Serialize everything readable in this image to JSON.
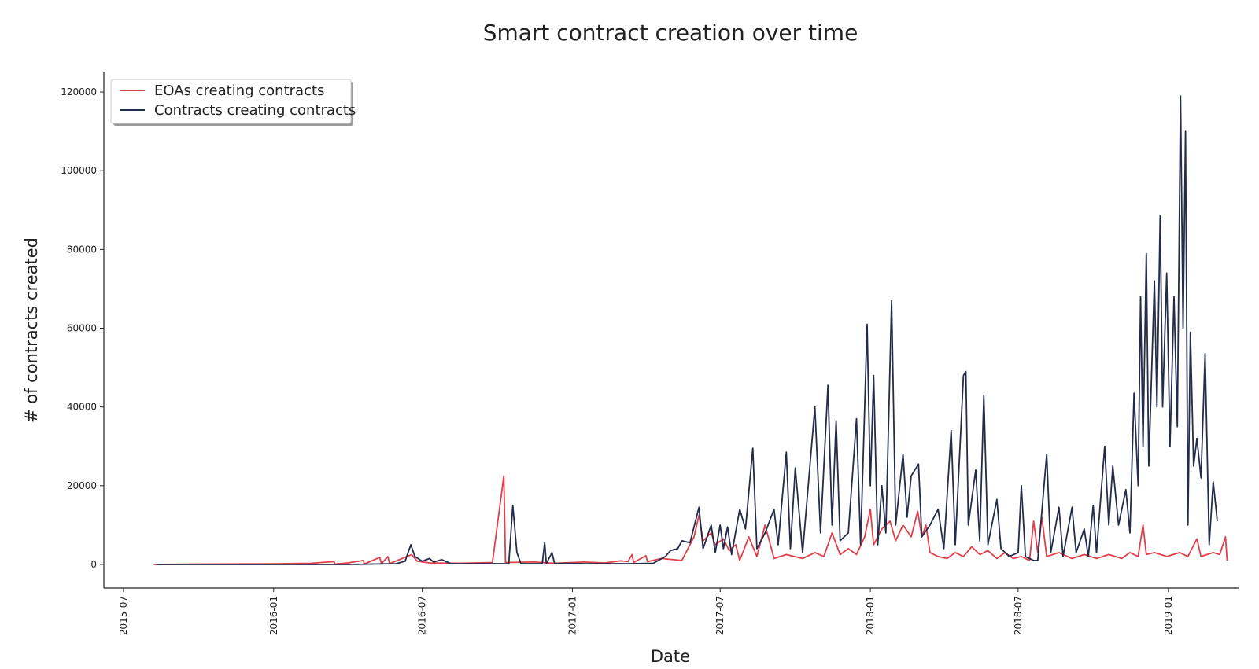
{
  "chart_data": {
    "type": "line",
    "title": "Smart contract creation over time",
    "xlabel": "Date",
    "ylabel": "# of contracts created",
    "x_ticks": [
      "2015-07",
      "2016-01",
      "2016-07",
      "2017-01",
      "2017-07",
      "2018-01",
      "2018-07",
      "2019-01"
    ],
    "y_ticks": [
      0,
      20000,
      40000,
      60000,
      80000,
      100000,
      120000
    ],
    "xlim": [
      "2015-06-07",
      "2019-03-28"
    ],
    "ylim": [
      -6000,
      125000
    ],
    "grid": false,
    "legend": "top-left",
    "colors": {
      "eoa": "#e0404a",
      "contracts": "#232c4a"
    },
    "series": [
      {
        "name": "EOAs creating contracts",
        "color": "#e0404a",
        "points": [
          [
            "2015-08-07",
            0
          ],
          [
            "2015-10-01",
            100
          ],
          [
            "2016-01-01",
            150
          ],
          [
            "2016-02-15",
            300
          ],
          [
            "2016-03-15",
            700
          ],
          [
            "2016-03-16",
            100
          ],
          [
            "2016-04-01",
            400
          ],
          [
            "2016-04-20",
            1000
          ],
          [
            "2016-04-21",
            100
          ],
          [
            "2016-05-10",
            1800
          ],
          [
            "2016-05-12",
            200
          ],
          [
            "2016-05-20",
            2000
          ],
          [
            "2016-05-22",
            200
          ],
          [
            "2016-06-18",
            2500
          ],
          [
            "2016-06-25",
            800
          ],
          [
            "2016-07-10",
            400
          ],
          [
            "2016-08-15",
            300
          ],
          [
            "2016-09-25",
            500
          ],
          [
            "2016-10-09",
            22500
          ],
          [
            "2016-10-11",
            500
          ],
          [
            "2016-11-15",
            600
          ],
          [
            "2016-12-10",
            300
          ],
          [
            "2017-01-15",
            600
          ],
          [
            "2017-02-10",
            400
          ],
          [
            "2017-03-01",
            900
          ],
          [
            "2017-03-10",
            700
          ],
          [
            "2017-03-15",
            2500
          ],
          [
            "2017-03-17",
            500
          ],
          [
            "2017-04-01",
            2200
          ],
          [
            "2017-04-03",
            700
          ],
          [
            "2017-04-20",
            1500
          ],
          [
            "2017-05-15",
            1000
          ],
          [
            "2017-05-30",
            7000
          ],
          [
            "2017-06-05",
            12500
          ],
          [
            "2017-06-10",
            6000
          ],
          [
            "2017-06-20",
            8000
          ],
          [
            "2017-06-25",
            5000
          ],
          [
            "2017-07-05",
            6500
          ],
          [
            "2017-07-12",
            3500
          ],
          [
            "2017-07-20",
            5000
          ],
          [
            "2017-07-25",
            1000
          ],
          [
            "2017-08-05",
            7000
          ],
          [
            "2017-08-15",
            2000
          ],
          [
            "2017-08-25",
            10000
          ],
          [
            "2017-09-05",
            1500
          ],
          [
            "2017-09-20",
            2500
          ],
          [
            "2017-10-10",
            1500
          ],
          [
            "2017-10-25",
            3000
          ],
          [
            "2017-11-05",
            2000
          ],
          [
            "2017-11-15",
            8000
          ],
          [
            "2017-11-25",
            2500
          ],
          [
            "2017-12-05",
            4000
          ],
          [
            "2017-12-15",
            2500
          ],
          [
            "2017-12-25",
            7000
          ],
          [
            "2018-01-01",
            14000
          ],
          [
            "2018-01-05",
            5000
          ],
          [
            "2018-01-15",
            9000
          ],
          [
            "2018-01-25",
            11000
          ],
          [
            "2018-02-01",
            6000
          ],
          [
            "2018-02-10",
            10000
          ],
          [
            "2018-02-20",
            7000
          ],
          [
            "2018-02-28",
            13500
          ],
          [
            "2018-03-05",
            7000
          ],
          [
            "2018-03-10",
            10000
          ],
          [
            "2018-03-15",
            3000
          ],
          [
            "2018-03-25",
            2000
          ],
          [
            "2018-04-05",
            1500
          ],
          [
            "2018-04-15",
            3000
          ],
          [
            "2018-04-25",
            2000
          ],
          [
            "2018-05-05",
            4500
          ],
          [
            "2018-05-15",
            2500
          ],
          [
            "2018-05-25",
            3500
          ],
          [
            "2018-06-05",
            1500
          ],
          [
            "2018-06-15",
            3000
          ],
          [
            "2018-06-25",
            1500
          ],
          [
            "2018-07-05",
            2000
          ],
          [
            "2018-07-15",
            1000
          ],
          [
            "2018-07-20",
            11000
          ],
          [
            "2018-07-25",
            3000
          ],
          [
            "2018-07-30",
            12000
          ],
          [
            "2018-08-05",
            2000
          ],
          [
            "2018-08-20",
            3000
          ],
          [
            "2018-09-05",
            1500
          ],
          [
            "2018-09-20",
            2500
          ],
          [
            "2018-10-05",
            1500
          ],
          [
            "2018-10-20",
            2500
          ],
          [
            "2018-11-05",
            1500
          ],
          [
            "2018-11-15",
            3000
          ],
          [
            "2018-11-25",
            2000
          ],
          [
            "2018-12-01",
            10000
          ],
          [
            "2018-12-05",
            2500
          ],
          [
            "2018-12-15",
            3000
          ],
          [
            "2018-12-30",
            2000
          ],
          [
            "2019-01-15",
            3000
          ],
          [
            "2019-01-25",
            2000
          ],
          [
            "2019-02-05",
            6500
          ],
          [
            "2019-02-10",
            2000
          ],
          [
            "2019-02-25",
            3000
          ],
          [
            "2019-03-05",
            2500
          ],
          [
            "2019-03-12",
            7000
          ],
          [
            "2019-03-14",
            1000
          ]
        ]
      },
      {
        "name": "Contracts creating contracts",
        "color": "#232c4a",
        "points": [
          [
            "2015-08-10",
            0
          ],
          [
            "2016-01-01",
            0
          ],
          [
            "2016-04-01",
            0
          ],
          [
            "2016-05-30",
            200
          ],
          [
            "2016-06-10",
            800
          ],
          [
            "2016-06-17",
            5000
          ],
          [
            "2016-06-22",
            2000
          ],
          [
            "2016-07-01",
            800
          ],
          [
            "2016-07-10",
            1500
          ],
          [
            "2016-07-15",
            600
          ],
          [
            "2016-07-25",
            1200
          ],
          [
            "2016-08-05",
            200
          ],
          [
            "2016-09-01",
            200
          ],
          [
            "2016-10-15",
            200
          ],
          [
            "2016-10-20",
            15000
          ],
          [
            "2016-10-25",
            3000
          ],
          [
            "2016-10-30",
            200
          ],
          [
            "2016-11-25",
            200
          ],
          [
            "2016-11-28",
            5500
          ],
          [
            "2016-11-30",
            200
          ],
          [
            "2016-12-07",
            3000
          ],
          [
            "2016-12-10",
            300
          ],
          [
            "2017-01-15",
            200
          ],
          [
            "2017-03-15",
            200
          ],
          [
            "2017-04-10",
            300
          ],
          [
            "2017-04-25",
            2000
          ],
          [
            "2017-05-01",
            3500
          ],
          [
            "2017-05-10",
            4000
          ],
          [
            "2017-05-15",
            6000
          ],
          [
            "2017-05-25",
            5500
          ],
          [
            "2017-06-05",
            14500
          ],
          [
            "2017-06-10",
            4000
          ],
          [
            "2017-06-20",
            10000
          ],
          [
            "2017-06-25",
            3000
          ],
          [
            "2017-07-01",
            10000
          ],
          [
            "2017-07-05",
            4000
          ],
          [
            "2017-07-10",
            9500
          ],
          [
            "2017-07-15",
            2500
          ],
          [
            "2017-07-25",
            14000
          ],
          [
            "2017-08-01",
            9000
          ],
          [
            "2017-08-10",
            29500
          ],
          [
            "2017-08-15",
            4000
          ],
          [
            "2017-08-25",
            8000
          ],
          [
            "2017-09-05",
            14000
          ],
          [
            "2017-09-10",
            5000
          ],
          [
            "2017-09-20",
            28500
          ],
          [
            "2017-09-25",
            4000
          ],
          [
            "2017-10-01",
            24500
          ],
          [
            "2017-10-10",
            3000
          ],
          [
            "2017-10-25",
            40000
          ],
          [
            "2017-11-01",
            8000
          ],
          [
            "2017-11-10",
            45500
          ],
          [
            "2017-11-15",
            10000
          ],
          [
            "2017-11-20",
            36500
          ],
          [
            "2017-11-25",
            6000
          ],
          [
            "2017-12-05",
            8000
          ],
          [
            "2017-12-15",
            37000
          ],
          [
            "2017-12-20",
            5000
          ],
          [
            "2017-12-28",
            61000
          ],
          [
            "2018-01-01",
            20000
          ],
          [
            "2018-01-05",
            48000
          ],
          [
            "2018-01-10",
            5000
          ],
          [
            "2018-01-15",
            20000
          ],
          [
            "2018-01-20",
            8000
          ],
          [
            "2018-01-27",
            67000
          ],
          [
            "2018-02-01",
            10000
          ],
          [
            "2018-02-10",
            28000
          ],
          [
            "2018-02-15",
            12000
          ],
          [
            "2018-02-20",
            22500
          ],
          [
            "2018-03-01",
            25500
          ],
          [
            "2018-03-05",
            7000
          ],
          [
            "2018-03-15",
            10000
          ],
          [
            "2018-03-25",
            14000
          ],
          [
            "2018-04-01",
            4000
          ],
          [
            "2018-04-10",
            34000
          ],
          [
            "2018-04-15",
            5000
          ],
          [
            "2018-04-25",
            48000
          ],
          [
            "2018-04-28",
            49000
          ],
          [
            "2018-05-01",
            10000
          ],
          [
            "2018-05-10",
            24000
          ],
          [
            "2018-05-15",
            6000
          ],
          [
            "2018-05-20",
            43000
          ],
          [
            "2018-05-25",
            5000
          ],
          [
            "2018-06-05",
            16500
          ],
          [
            "2018-06-10",
            4000
          ],
          [
            "2018-06-20",
            2000
          ],
          [
            "2018-07-01",
            3000
          ],
          [
            "2018-07-05",
            20000
          ],
          [
            "2018-07-10",
            2000
          ],
          [
            "2018-07-20",
            1000
          ],
          [
            "2018-07-25",
            1000
          ],
          [
            "2018-08-05",
            28000
          ],
          [
            "2018-08-10",
            3000
          ],
          [
            "2018-08-20",
            14500
          ],
          [
            "2018-08-25",
            2000
          ],
          [
            "2018-09-05",
            14500
          ],
          [
            "2018-09-10",
            3000
          ],
          [
            "2018-09-20",
            9000
          ],
          [
            "2018-09-25",
            2000
          ],
          [
            "2018-10-01",
            15000
          ],
          [
            "2018-10-05",
            3000
          ],
          [
            "2018-10-15",
            30000
          ],
          [
            "2018-10-20",
            10000
          ],
          [
            "2018-10-25",
            25000
          ],
          [
            "2018-11-01",
            10000
          ],
          [
            "2018-11-10",
            19000
          ],
          [
            "2018-11-15",
            8000
          ],
          [
            "2018-11-20",
            43500
          ],
          [
            "2018-11-25",
            20000
          ],
          [
            "2018-11-28",
            68000
          ],
          [
            "2018-12-01",
            30000
          ],
          [
            "2018-12-05",
            79000
          ],
          [
            "2018-12-08",
            25000
          ],
          [
            "2018-12-15",
            72000
          ],
          [
            "2018-12-18",
            40000
          ],
          [
            "2018-12-22",
            88500
          ],
          [
            "2018-12-25",
            40000
          ],
          [
            "2018-12-30",
            74000
          ],
          [
            "2019-01-03",
            30000
          ],
          [
            "2019-01-08",
            68000
          ],
          [
            "2019-01-12",
            35000
          ],
          [
            "2019-01-16",
            119000
          ],
          [
            "2019-01-19",
            60000
          ],
          [
            "2019-01-22",
            110000
          ],
          [
            "2019-01-25",
            10000
          ],
          [
            "2019-01-28",
            59000
          ],
          [
            "2019-02-01",
            25000
          ],
          [
            "2019-02-05",
            32000
          ],
          [
            "2019-02-10",
            22000
          ],
          [
            "2019-02-15",
            53500
          ],
          [
            "2019-02-20",
            5000
          ],
          [
            "2019-02-25",
            21000
          ],
          [
            "2019-03-02",
            11000
          ]
        ]
      }
    ]
  }
}
